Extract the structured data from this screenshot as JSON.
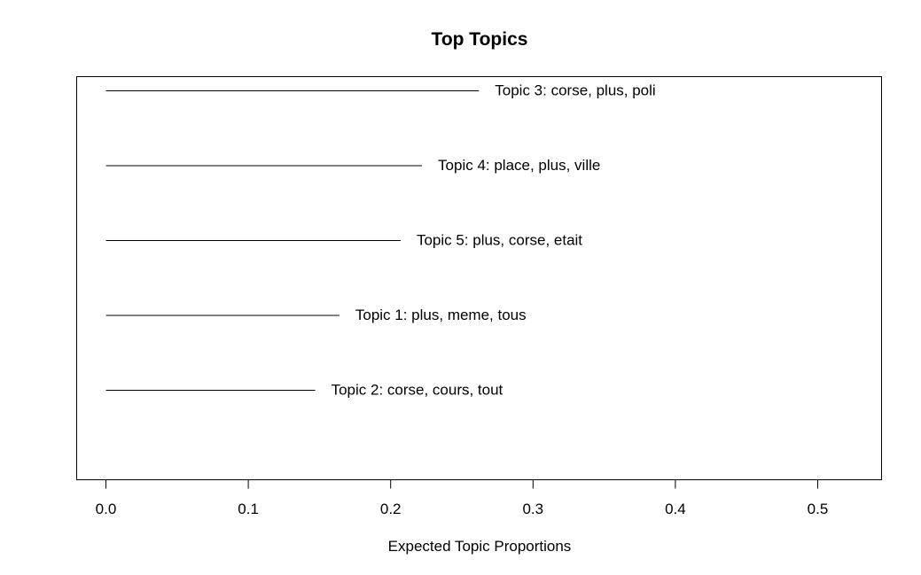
{
  "chart_data": {
    "type": "bar",
    "orientation": "horizontal",
    "title": "Top Topics",
    "xlabel": "Expected Topic Proportions",
    "ylabel": "",
    "xlim": [
      0,
      0.5
    ],
    "x_ticks": [
      "0.0",
      "0.1",
      "0.2",
      "0.3",
      "0.4",
      "0.5"
    ],
    "grid": false,
    "categories": [
      "Topic 3: corse, plus, poli",
      "Topic 4: place, plus, ville",
      "Topic 5: plus, corse, etait",
      "Topic 1: plus, meme, tous",
      "Topic 2: corse, cours, tout"
    ],
    "values": [
      0.262,
      0.222,
      0.207,
      0.164,
      0.147
    ]
  }
}
